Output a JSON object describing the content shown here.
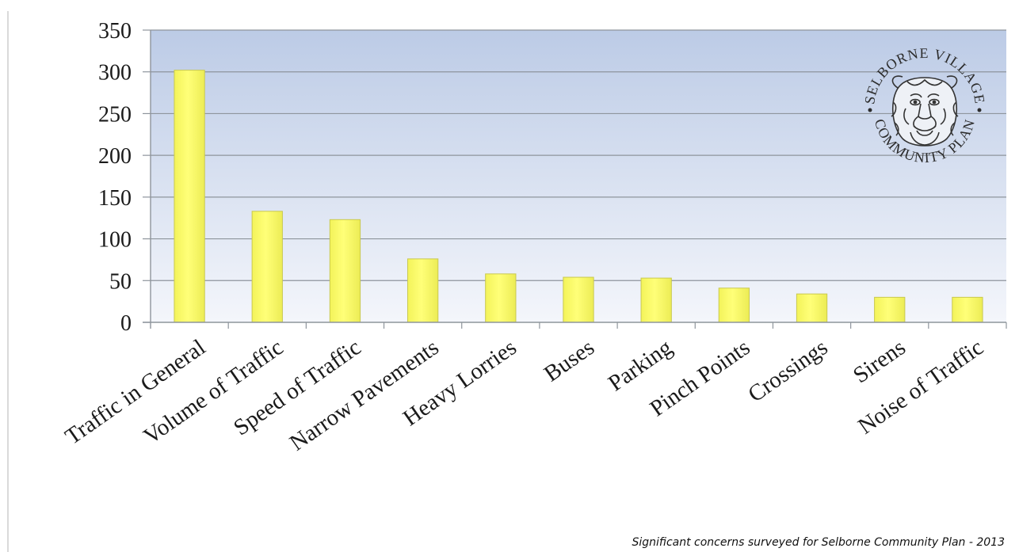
{
  "caption": "Significant concerns surveyed for Selborne Community Plan - 2013",
  "logo": {
    "top_text": "SELBORNE VILLAGE",
    "bottom_text": "COMMUNITY PLAN"
  },
  "colors": {
    "bar_fill": "#ffff6e",
    "bar_stroke": "#c9c950",
    "plot_bg_top": "#bccbe6",
    "plot_bg_bottom": "#f4f6fb",
    "gridline": "#8e959c",
    "axis": "#8e959c"
  },
  "chart_data": {
    "type": "bar",
    "title": "",
    "xlabel": "",
    "ylabel": "",
    "ylim": [
      0,
      350
    ],
    "yticks": [
      0,
      50,
      100,
      150,
      200,
      250,
      300,
      350
    ],
    "grid": true,
    "legend": "none",
    "categories": [
      "Traffic in General",
      "Volume of Traffic",
      "Speed of Traffic",
      "Narrow Pavements",
      "Heavy Lorries",
      "Buses",
      "Parking",
      "Pinch Points",
      "Crossings",
      "Sirens",
      "Noise of Traffic"
    ],
    "values": [
      302,
      133,
      123,
      76,
      58,
      54,
      53,
      41,
      34,
      30,
      30
    ]
  }
}
